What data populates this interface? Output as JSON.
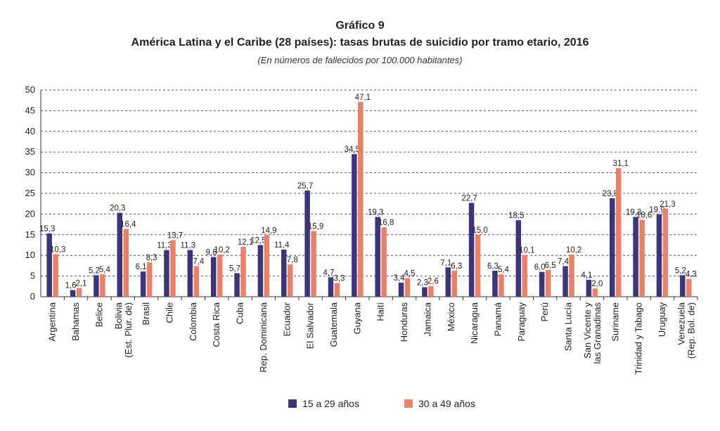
{
  "header": {
    "title": "Gráfico 9",
    "subtitle": "América Latina y el Caribe (28 países): tasas brutas de suicidio por tramo etario, 2016",
    "note": "(En números de fallecidos por 100.000 habitantes)"
  },
  "colors": {
    "series1": "#3b3677",
    "series2": "#e8806a",
    "grid": "#555555",
    "axis": "#333333"
  },
  "chart_data": {
    "type": "bar",
    "ylim": [
      0,
      50
    ],
    "yticks": [
      0,
      5,
      10,
      15,
      20,
      25,
      30,
      35,
      40,
      45,
      50
    ],
    "grid": true,
    "legend_position": "bottom",
    "categories": [
      "Argentina",
      "Bahamas",
      "Belice",
      "Bolivia (Est. Plur. de)",
      "Brasil",
      "Chile",
      "Colombia",
      "Costa Rica",
      "Cuba",
      "Rep. Dominicana",
      "Ecuador",
      "El Salvador",
      "Guatemala",
      "Guyana",
      "Haití",
      "Honduras",
      "Jamaica",
      "México",
      "Nicaragua",
      "Panamá",
      "Paraguay",
      "Perú",
      "Santa Lucía",
      "San Vicente y las Granadinas",
      "Suriname",
      "Trinidad y Tabago",
      "Uruguay",
      "Venezuela (Rep. Bol. de)"
    ],
    "category_lines": [
      [
        "Argentina"
      ],
      [
        "Bahamas"
      ],
      [
        "Belice"
      ],
      [
        "Bolivia",
        "(Est. Plur. de)"
      ],
      [
        "Brasil"
      ],
      [
        "Chile"
      ],
      [
        "Colombia"
      ],
      [
        "Costa Rica"
      ],
      [
        "Cuba"
      ],
      [
        "Rep. Dominicana"
      ],
      [
        "Ecuador"
      ],
      [
        "El Salvador"
      ],
      [
        "Guatemala"
      ],
      [
        "Guyana"
      ],
      [
        "Haití"
      ],
      [
        "Honduras"
      ],
      [
        "Jamaica"
      ],
      [
        "México"
      ],
      [
        "Nicaragua"
      ],
      [
        "Panamá"
      ],
      [
        "Paraguay"
      ],
      [
        "Perú"
      ],
      [
        "Santa Lucía"
      ],
      [
        "San Vicente y",
        "las Granadinas"
      ],
      [
        "Suriname"
      ],
      [
        "Trinidad y Tabago"
      ],
      [
        "Uruguay"
      ],
      [
        "Venezuela",
        "(Rep. Bol. de)"
      ]
    ],
    "series": [
      {
        "name": "15 a 29 años",
        "values": [
          15.3,
          1.6,
          5.2,
          20.3,
          6.1,
          11.3,
          11.3,
          9.6,
          5.7,
          12.5,
          11.4,
          25.7,
          4.7,
          34.5,
          19.3,
          3.4,
          2.3,
          7.1,
          22.7,
          6.3,
          18.5,
          6.0,
          7.4,
          4.1,
          23.8,
          19.3,
          19.9,
          5.2
        ],
        "labels": [
          "15,3",
          "1,6",
          "5,2",
          "20,3",
          "6,1",
          "11,3",
          "11,3",
          "9,6",
          "5,7",
          "12,5",
          "11,4",
          "25,7",
          "4,7",
          "34,5",
          "19,3",
          "3,4",
          "2,3",
          "7,1",
          "22,7",
          "6,3",
          "18,5",
          "6,0",
          "7,4",
          "4,1",
          "23,8",
          "19,3",
          "19,9",
          "5,2"
        ]
      },
      {
        "name": "30 a 49 años",
        "values": [
          10.3,
          2.1,
          5.4,
          16.4,
          8.3,
          13.7,
          7.4,
          10.2,
          12.1,
          14.9,
          7.8,
          15.9,
          3.3,
          47.1,
          16.8,
          4.5,
          2.6,
          6.3,
          15.0,
          5.4,
          10.1,
          6.5,
          10.2,
          2.0,
          31.1,
          18.6,
          21.3,
          4.3
        ],
        "labels": [
          "10,3",
          "2,1",
          "5,4",
          "16,4",
          "8,3",
          "13,7",
          "7,4",
          "10,2",
          "12,1",
          "14,9",
          "7,8",
          "15,9",
          "3,3",
          "47,1",
          "16,8",
          "4,5",
          "2,6",
          "6,3",
          "15,0",
          "5,4",
          "10,1",
          "6,5",
          "10,2",
          "2,0",
          "31,1",
          "18,6",
          "21,3",
          "4,3"
        ]
      }
    ]
  }
}
